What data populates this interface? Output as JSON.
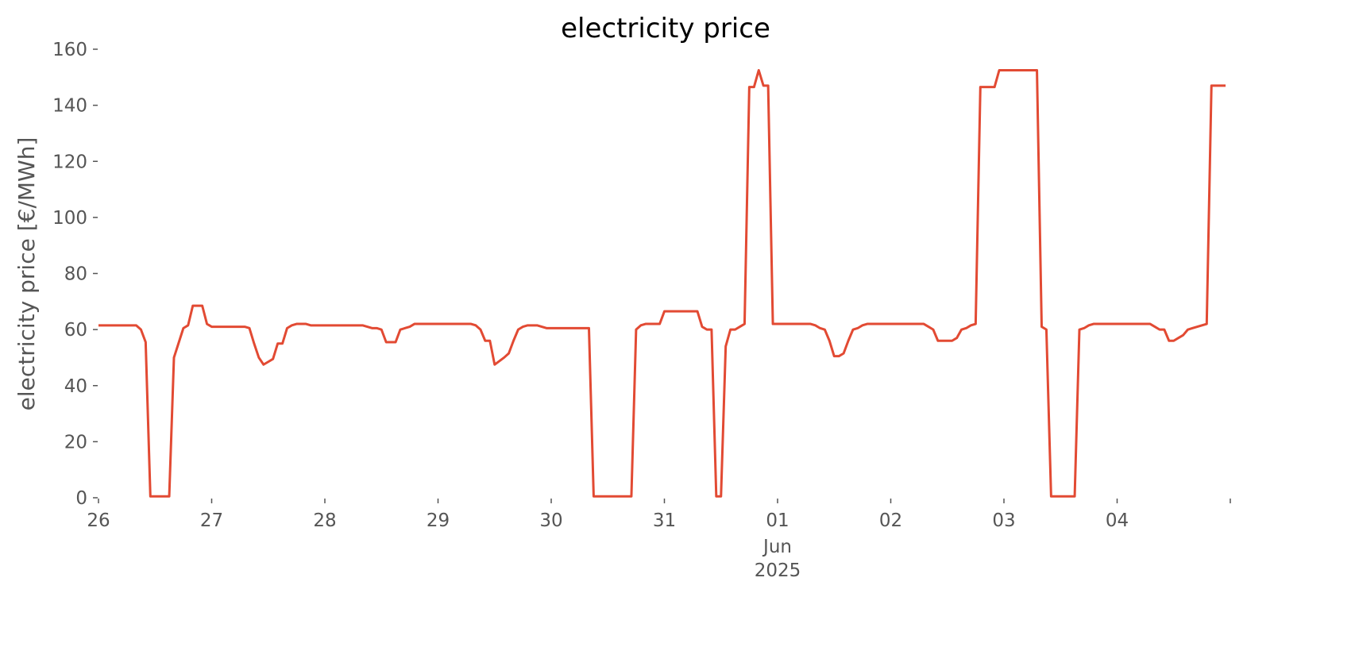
{
  "chart_data": {
    "type": "line",
    "title": "electricity price",
    "ylabel": "electricity price [€/MWh]",
    "x": [
      "2025-05-26T00:00",
      "2025-05-26T08:00",
      "2025-05-26T09:00",
      "2025-05-26T10:00",
      "2025-05-26T11:00",
      "2025-05-26T15:00",
      "2025-05-26T16:00",
      "2025-05-26T18:00",
      "2025-05-26T19:00",
      "2025-05-26T20:00",
      "2025-05-26T22:00",
      "2025-05-26T23:00",
      "2025-05-27T00:00",
      "2025-05-27T07:00",
      "2025-05-27T08:00",
      "2025-05-27T09:00",
      "2025-05-27T10:00",
      "2025-05-27T11:00",
      "2025-05-27T12:00",
      "2025-05-27T13:00",
      "2025-05-27T14:00",
      "2025-05-27T15:00",
      "2025-05-27T16:00",
      "2025-05-27T17:00",
      "2025-05-27T18:00",
      "2025-05-27T20:00",
      "2025-05-27T21:00",
      "2025-05-28T00:00",
      "2025-05-28T08:00",
      "2025-05-28T09:00",
      "2025-05-28T10:00",
      "2025-05-28T11:00",
      "2025-05-28T12:00",
      "2025-05-28T13:00",
      "2025-05-28T15:00",
      "2025-05-28T16:00",
      "2025-05-28T17:00",
      "2025-05-28T18:00",
      "2025-05-28T19:00",
      "2025-05-29T00:00",
      "2025-05-29T07:00",
      "2025-05-29T08:00",
      "2025-05-29T09:00",
      "2025-05-29T10:00",
      "2025-05-29T11:00",
      "2025-05-29T12:00",
      "2025-05-29T14:00",
      "2025-05-29T15:00",
      "2025-05-29T16:00",
      "2025-05-29T17:00",
      "2025-05-29T18:00",
      "2025-05-29T19:00",
      "2025-05-29T21:00",
      "2025-05-29T22:00",
      "2025-05-29T23:00",
      "2025-05-30T00:00",
      "2025-05-30T08:00",
      "2025-05-30T09:00",
      "2025-05-30T17:00",
      "2025-05-30T18:00",
      "2025-05-30T19:00",
      "2025-05-30T20:00",
      "2025-05-30T23:00",
      "2025-05-31T00:00",
      "2025-05-31T07:00",
      "2025-05-31T08:00",
      "2025-05-31T09:00",
      "2025-05-31T10:00",
      "2025-05-31T11:00",
      "2025-05-31T12:00",
      "2025-05-31T13:00",
      "2025-05-31T14:00",
      "2025-05-31T15:00",
      "2025-05-31T16:00",
      "2025-05-31T17:00",
      "2025-05-31T18:00",
      "2025-05-31T19:00",
      "2025-05-31T20:00",
      "2025-05-31T21:00",
      "2025-05-31T22:00",
      "2025-05-31T23:00",
      "2025-06-01T00:00",
      "2025-06-01T07:00",
      "2025-06-01T08:00",
      "2025-06-01T09:00",
      "2025-06-01T10:00",
      "2025-06-01T11:00",
      "2025-06-01T12:00",
      "2025-06-01T13:00",
      "2025-06-01T14:00",
      "2025-06-01T15:00",
      "2025-06-01T16:00",
      "2025-06-01T17:00",
      "2025-06-01T18:00",
      "2025-06-01T19:00",
      "2025-06-02T00:00",
      "2025-06-02T07:00",
      "2025-06-02T08:00",
      "2025-06-02T09:00",
      "2025-06-02T10:00",
      "2025-06-02T13:00",
      "2025-06-02T14:00",
      "2025-06-02T15:00",
      "2025-06-02T16:00",
      "2025-06-02T17:00",
      "2025-06-02T18:00",
      "2025-06-02T19:00",
      "2025-06-02T22:00",
      "2025-06-02T23:00",
      "2025-06-03T00:00",
      "2025-06-03T07:00",
      "2025-06-03T08:00",
      "2025-06-03T09:00",
      "2025-06-03T10:00",
      "2025-06-03T15:00",
      "2025-06-03T16:00",
      "2025-06-03T17:00",
      "2025-06-03T18:00",
      "2025-06-03T19:00",
      "2025-06-04T00:00",
      "2025-06-04T07:00",
      "2025-06-04T08:00",
      "2025-06-04T09:00",
      "2025-06-04T10:00",
      "2025-06-04T11:00",
      "2025-06-04T12:00",
      "2025-06-04T13:00",
      "2025-06-04T14:00",
      "2025-06-04T15:00",
      "2025-06-04T16:00",
      "2025-06-04T17:00",
      "2025-06-04T18:00",
      "2025-06-04T19:00",
      "2025-06-04T20:00",
      "2025-06-04T23:00"
    ],
    "series": [
      {
        "name": "electricity price",
        "color": "#e24a33",
        "values": [
          61.5,
          61.5,
          60,
          55.5,
          0.5,
          0.5,
          50,
          60.5,
          61.5,
          68.5,
          68.5,
          62,
          61,
          61,
          60.5,
          55,
          50,
          47.5,
          48.5,
          49.5,
          55,
          55,
          60.5,
          61.5,
          62,
          62,
          61.5,
          61.5,
          61.5,
          61,
          60.5,
          60.5,
          60,
          55.5,
          55.5,
          60,
          60.5,
          61,
          62,
          62,
          62,
          61.5,
          60,
          56,
          56,
          47.5,
          50,
          51.5,
          56,
          60,
          61,
          61.5,
          61.5,
          61,
          60.5,
          60.5,
          60.5,
          0.5,
          0.5,
          60,
          61.5,
          62,
          62,
          66.5,
          66.5,
          61,
          60,
          60,
          0.5,
          0.5,
          54,
          60,
          60,
          61,
          62,
          146.5,
          146.5,
          152.5,
          147,
          147,
          62,
          62,
          62,
          61.5,
          60.5,
          60,
          56,
          50.5,
          50.5,
          51.5,
          56,
          60,
          60.5,
          61.5,
          62,
          62,
          62,
          61,
          60,
          56,
          56,
          57,
          60,
          60.5,
          61.5,
          62,
          146.5,
          146.5,
          152.5,
          152.5,
          152.5,
          61,
          60,
          0.5,
          0.5,
          60,
          60.5,
          61.5,
          62,
          62,
          62,
          61,
          60,
          60,
          56,
          56,
          57,
          58,
          60,
          60.5,
          61,
          61.5,
          62,
          147,
          147
        ]
      }
    ],
    "xlim": [
      "2025-05-26T00:00",
      "2025-06-05T00:00"
    ],
    "xticks": [
      {
        "value": "2025-05-26T00:00",
        "label": "26"
      },
      {
        "value": "2025-05-27T00:00",
        "label": "27"
      },
      {
        "value": "2025-05-28T00:00",
        "label": "28"
      },
      {
        "value": "2025-05-29T00:00",
        "label": "29"
      },
      {
        "value": "2025-05-30T00:00",
        "label": "30"
      },
      {
        "value": "2025-05-31T00:00",
        "label": "31"
      },
      {
        "value": "2025-06-01T00:00",
        "label": "01"
      },
      {
        "value": "2025-06-02T00:00",
        "label": "02"
      },
      {
        "value": "2025-06-03T00:00",
        "label": "03"
      },
      {
        "value": "2025-06-04T00:00",
        "label": "04"
      },
      {
        "value": "2025-06-05T00:00",
        "label": null
      }
    ],
    "x_secondary_label": {
      "value": "2025-06-01T00:00",
      "lines": [
        "Jun",
        "2025"
      ]
    },
    "ylim": [
      0,
      160
    ],
    "yticks": [
      0,
      20,
      40,
      60,
      80,
      100,
      120,
      140,
      160
    ],
    "grid": false
  }
}
